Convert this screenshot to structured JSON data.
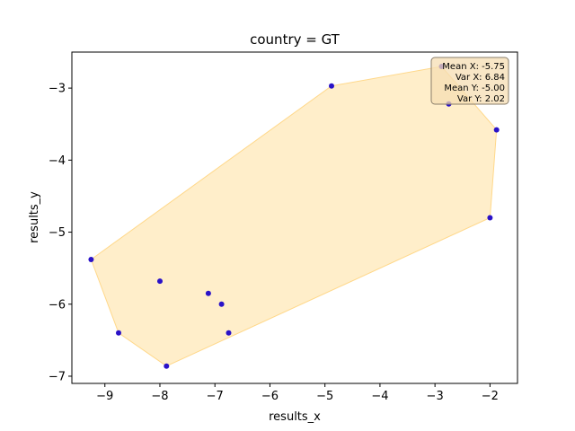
{
  "chart_data": {
    "type": "scatter",
    "title": "country = GT",
    "xlabel": "results_x",
    "ylabel": "results_y",
    "xlim": [
      -9.6,
      -1.5
    ],
    "ylim": [
      -7.1,
      -2.5
    ],
    "x_ticks": [
      -9,
      -8,
      -7,
      -6,
      -5,
      -4,
      -3,
      -2
    ],
    "y_ticks": [
      -7,
      -6,
      -5,
      -4,
      -3
    ],
    "x_tick_labels": [
      "−9",
      "−8",
      "−7",
      "−6",
      "−5",
      "−4",
      "−3",
      "−2"
    ],
    "y_tick_labels": [
      "−7",
      "−6",
      "−5",
      "−4",
      "−3"
    ],
    "grid": false,
    "points": [
      {
        "x": -9.25,
        "y": -5.38
      },
      {
        "x": -8.75,
        "y": -6.4
      },
      {
        "x": -8.0,
        "y": -5.68
      },
      {
        "x": -7.88,
        "y": -6.86
      },
      {
        "x": -7.12,
        "y": -5.85
      },
      {
        "x": -6.88,
        "y": -6.0
      },
      {
        "x": -6.75,
        "y": -6.4
      },
      {
        "x": -4.88,
        "y": -2.97
      },
      {
        "x": -2.88,
        "y": -2.7
      },
      {
        "x": -2.75,
        "y": -3.22
      },
      {
        "x": -2.0,
        "y": -4.8
      },
      {
        "x": -1.88,
        "y": -3.58
      }
    ],
    "hull": [
      {
        "x": -9.25,
        "y": -5.38
      },
      {
        "x": -8.75,
        "y": -6.4
      },
      {
        "x": -7.88,
        "y": -6.86
      },
      {
        "x": -2.0,
        "y": -4.8
      },
      {
        "x": -1.88,
        "y": -3.58
      },
      {
        "x": -2.88,
        "y": -2.7
      },
      {
        "x": -4.88,
        "y": -2.97
      }
    ],
    "point_color": "#2a12c8",
    "hull_color": "#ffe3a6",
    "hull_edge_color": "#ffd88a",
    "stats": {
      "mean_x": "Mean X: -5.75",
      "var_x": "Var X: 6.84",
      "mean_y": "Mean Y: -5.00",
      "var_y": "Var Y: 2.02"
    },
    "stats_box_color": "#f5deb3",
    "stats_box_edge": "#8a7d6a"
  }
}
